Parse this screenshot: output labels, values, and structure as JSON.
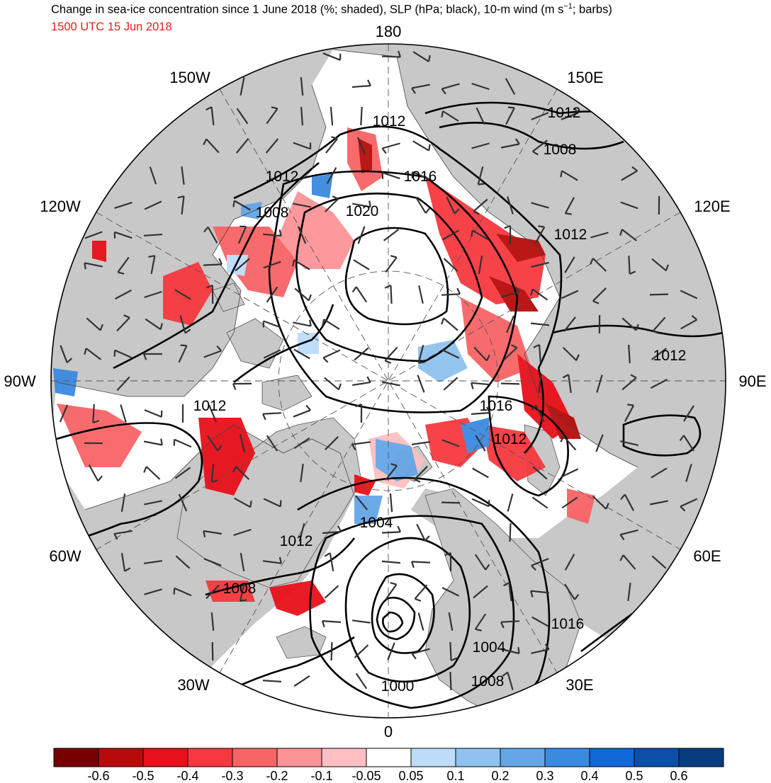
{
  "title": "Change in sea-ice concentration since 1 June 2018 (%; shaded), SLP (hPa; black), 10-m wind (m s",
  "title_sup": "−1",
  "title_tail": "; barbs)",
  "subtitle": "1500 UTC 15 Jun 2018",
  "colors": {
    "land": "#c8c8c8",
    "ocean": "#ffffff",
    "title_red": "#e8201e"
  },
  "longitude_labels": [
    "180",
    "150E",
    "120E",
    "90E",
    "60E",
    "30E",
    "0",
    "30W",
    "60W",
    "90W",
    "120W",
    "150W"
  ],
  "contour_labels": [
    "1012",
    "1012",
    "1008",
    "1016",
    "1020",
    "1012",
    "1008",
    "1012",
    "1012",
    "1016",
    "1012",
    "1012",
    "1004",
    "1012",
    "1008",
    "1016",
    "1004",
    "1008",
    "1000"
  ],
  "colorbar": {
    "colors": [
      "#780000",
      "#b70b0b",
      "#e8101a",
      "#f7383f",
      "#f86466",
      "#fb9497",
      "#fdbfc1",
      "#ffffff",
      "#bddcfa",
      "#8fc2ee",
      "#65a6e6",
      "#3c8ae0",
      "#1168d8",
      "#0b4fa8",
      "#083d7e"
    ],
    "labels": [
      "-0.6",
      "-0.5",
      "-0.4",
      "-0.3",
      "-0.2",
      "-0.1",
      "-0.05",
      "0.05",
      "0.1",
      "0.2",
      "0.3",
      "0.4",
      "0.5",
      "0.6"
    ]
  }
}
